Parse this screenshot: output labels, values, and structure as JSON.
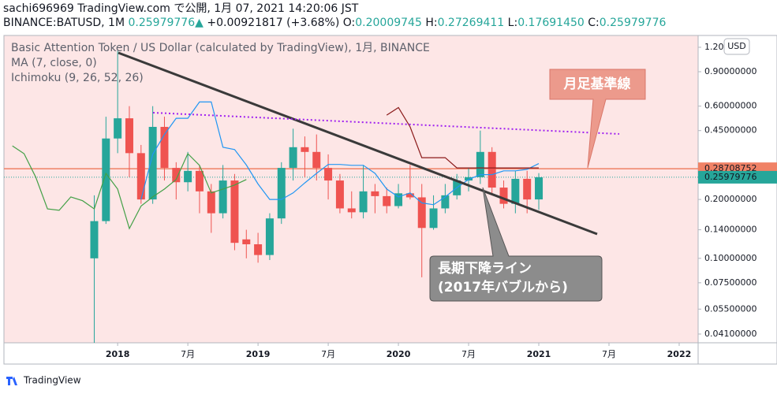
{
  "header": {
    "line1": "sachi696969 TradingView.com で公開, 1月 07, 2021 14:20:06 JST",
    "symbol": "BINANCE:BATUSD, 1M",
    "last": "0.25979776",
    "arrow": "▲",
    "change": "+0.00921817 (+3.68%)",
    "ohlc": [
      [
        "O:",
        "0.20009745"
      ],
      [
        "H:",
        "0.27269411"
      ],
      [
        "L:",
        "0.17691450"
      ],
      [
        "C:",
        "0.25979776"
      ]
    ]
  },
  "legend_texts": [
    "Basic Attention Token / US Dollar (calculated by TradingView), 1月, BINANCE",
    "MA (7, close, 0)",
    "Ichimoku (9, 26, 52, 26)"
  ],
  "currency_button": "USD",
  "footer": "TradingView",
  "annotations": {
    "base_line": "月足基準線",
    "trend_line": [
      "長期下降ライン",
      "(2017年バブルから)"
    ]
  },
  "chart_data": {
    "type": "candlestick",
    "log_scale": true,
    "grid": false,
    "up_color": "#26a69a",
    "down_color": "#ef5350",
    "x": [
      2017.8333,
      2017.9167,
      2018,
      2018.0833,
      2018.1667,
      2018.25,
      2018.3333,
      2018.4167,
      2018.5,
      2018.5833,
      2018.6667,
      2018.75,
      2018.8333,
      2018.9167,
      2019,
      2019.0833,
      2019.1667,
      2019.25,
      2019.3333,
      2019.4167,
      2019.5,
      2019.5833,
      2019.6667,
      2019.75,
      2019.8333,
      2019.9167,
      2020,
      2020.0833,
      2020.1667,
      2020.25,
      2020.3333,
      2020.4167,
      2020.5,
      2020.5833,
      2020.6667,
      2020.75,
      2020.8333,
      2020.9167,
      2021
    ],
    "open": [
      0.1,
      0.155,
      0.41,
      0.52,
      0.345,
      0.2,
      0.47,
      0.29,
      0.245,
      0.28,
      0.22,
      0.17,
      0.25,
      0.125,
      0.118,
      0.104,
      0.16,
      0.29,
      0.37,
      0.35,
      0.29,
      0.25,
      0.18,
      0.172,
      0.22,
      0.208,
      0.185,
      0.215,
      0.205,
      0.143,
      0.18,
      0.21,
      0.25,
      0.26,
      0.35,
      0.23,
      0.19,
      0.255,
      0.20009745
    ],
    "high": [
      0.21,
      0.53,
      1.15,
      0.6,
      0.38,
      0.6,
      0.53,
      0.31,
      0.35,
      0.3,
      0.24,
      0.3,
      0.27,
      0.14,
      0.135,
      0.17,
      0.31,
      0.46,
      0.42,
      0.43,
      0.34,
      0.27,
      0.22,
      0.3,
      0.24,
      0.23,
      0.24,
      0.3,
      0.24,
      0.21,
      0.24,
      0.27,
      0.29,
      0.45,
      0.37,
      0.25,
      0.28,
      0.28,
      0.27269411
    ],
    "low": [
      0.037,
      0.15,
      0.345,
      0.26,
      0.19,
      0.19,
      0.25,
      0.2,
      0.22,
      0.17,
      0.135,
      0.16,
      0.11,
      0.1,
      0.095,
      0.098,
      0.15,
      0.25,
      0.26,
      0.25,
      0.2,
      0.17,
      0.16,
      0.16,
      0.17,
      0.17,
      0.18,
      0.2,
      0.08,
      0.14,
      0.17,
      0.2,
      0.22,
      0.24,
      0.21,
      0.18,
      0.17,
      0.17,
      0.1769145
    ],
    "close": [
      0.155,
      0.41,
      0.52,
      0.345,
      0.2,
      0.47,
      0.29,
      0.245,
      0.28,
      0.22,
      0.17,
      0.25,
      0.12,
      0.118,
      0.104,
      0.16,
      0.29,
      0.37,
      0.35,
      0.29,
      0.25,
      0.18,
      0.172,
      0.22,
      0.208,
      0.185,
      0.215,
      0.205,
      0.143,
      0.18,
      0.21,
      0.25,
      0.26,
      0.35,
      0.23,
      0.19,
      0.255,
      0.2,
      0.25979776
    ],
    "series": [
      {
        "color": "#2196f3",
        "values": [
          null,
          null,
          null,
          null,
          0.2,
          0.34,
          0.43,
          0.52,
          0.52,
          0.63,
          0.63,
          0.37,
          0.36,
          0.3,
          0.24,
          0.2,
          0.2,
          0.216,
          0.243,
          0.272,
          0.302,
          0.302,
          0.299,
          0.299,
          0.272,
          0.226,
          0.206,
          0.216,
          0.192,
          0.188,
          0.206,
          0.23,
          0.253,
          0.268,
          0.268,
          0.28,
          0.28,
          0.285,
          0.305
        ]
      },
      {
        "color": "#8b1a1a",
        "values": [
          null,
          null,
          null,
          null,
          null,
          null,
          null,
          null,
          null,
          null,
          null,
          null,
          null,
          null,
          null,
          null,
          null,
          null,
          null,
          null,
          null,
          null,
          null,
          null,
          null,
          0.54,
          0.59,
          0.47,
          0.327,
          0.327,
          0.327,
          0.29,
          0.29,
          0.29,
          0.29,
          0.29,
          0.29,
          0.29,
          0.29
        ]
      },
      {
        "color": "#43a047",
        "x": [
          2017.25,
          2017.3333,
          2017.4167,
          2017.5,
          2017.5833,
          2017.6667,
          2017.75,
          2017.8333,
          2017.9167,
          2018,
          2018.0833,
          2018.1667,
          2018.25,
          2018.3333,
          2018.4167,
          2018.5,
          2018.5833,
          2018.6667,
          2018.75,
          2018.8333,
          2018.9167
        ],
        "values": [
          0.376,
          0.343,
          0.26,
          0.179,
          0.176,
          0.206,
          0.197,
          0.179,
          0.272,
          0.226,
          0.142,
          0.185,
          0.206,
          0.226,
          0.253,
          0.343,
          0.299,
          0.216,
          0.226,
          0.237,
          0.253
        ]
      }
    ],
    "levels": [
      {
        "value": 0.28708752,
        "label": "0.28708752",
        "color": "#f08266"
      },
      {
        "value": 0.25979776,
        "label": "0.25979776",
        "color": "#26a69a"
      }
    ],
    "xlim": [
      2017.19,
      2022.135
    ],
    "xticks": [
      2018,
      {
        "value": 2018.5,
        "label": "7月"
      },
      2019,
      {
        "value": 2019.5,
        "label": "7月"
      },
      2020,
      {
        "value": 2020.5,
        "label": "7月"
      },
      2021,
      {
        "value": 2021.5,
        "label": "7月"
      },
      2022
    ],
    "ylim": [
      0.037,
      1.379
    ],
    "yticks": [
      {
        "value": 1.2,
        "label": "1.20"
      },
      {
        "value": 0.9,
        "label": "0.90000000"
      },
      {
        "value": 0.6,
        "label": "0.60000000"
      },
      {
        "value": 0.45,
        "label": "0.45000000"
      },
      {
        "value": 0.2,
        "label": "0.20000000"
      },
      {
        "value": 0.14,
        "label": "0.14000000"
      },
      {
        "value": 0.1,
        "label": "0.10000000"
      },
      {
        "value": 0.075,
        "label": "0.07500000"
      },
      {
        "value": 0.055,
        "label": "0.05500000"
      },
      {
        "value": 0.041,
        "label": "0.04100000"
      }
    ]
  }
}
